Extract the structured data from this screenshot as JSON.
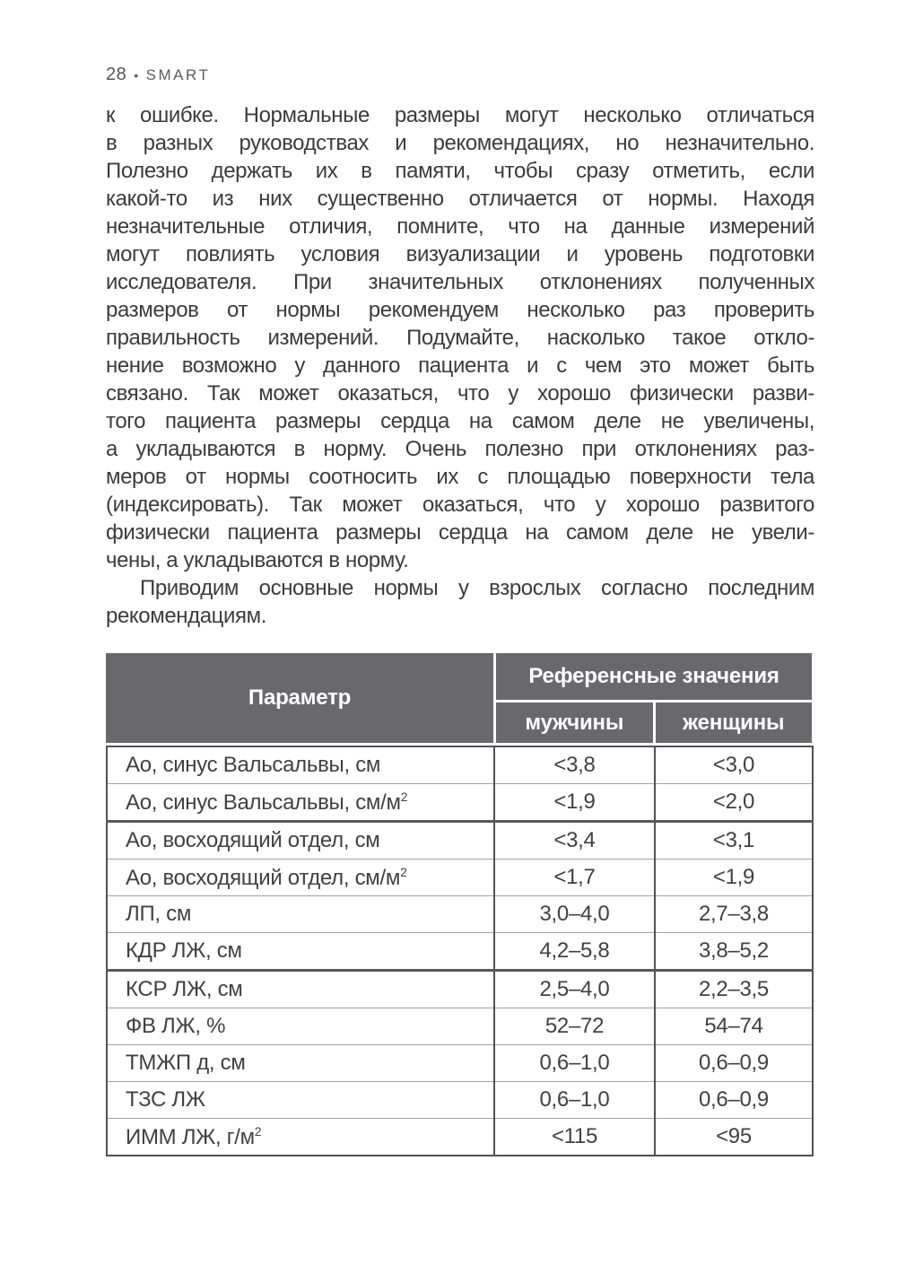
{
  "page_header": {
    "page_number": "28",
    "separator": "•",
    "book_title": "SMART"
  },
  "body": {
    "paragraphs": [
      {
        "indent": false,
        "lines": [
          "к ошибке. Нормальные размеры могут несколько отличаться",
          "в разных руководствах и рекомендациях, но незначительно.",
          "Полезно держать их в памяти, чтобы сразу отметить, если",
          "какой-то из них существенно отличается от нормы. Находя",
          "незначительные отличия, помните, что на данные измерений",
          "могут повлиять условия визуализации и уровень подготовки",
          "исследователя. При значительных отклонениях полученных",
          "размеров от нормы рекомендуем несколько раз проверить",
          "правильность измерений. Подумайте, насколько такое откло-",
          "нение возможно у данного пациента и с чем это может быть",
          "связано. Так может оказаться, что у хорошо физически разви-",
          "того пациента размеры сердца на самом деле не увеличены,",
          "а укладываются в норму. Очень полезно при отклонениях раз-",
          "меров от нормы соотносить их с площадью поверхности тела",
          "(индексировать). Так может оказаться, что у хорошо развитого",
          "физически пациента размеры сердца на самом деле не увели-",
          "чены, а укладываются в норму."
        ]
      },
      {
        "indent": true,
        "lines": [
          "Приводим основные нормы у взрослых согласно последним",
          "рекомендациям."
        ]
      }
    ]
  },
  "table": {
    "header": {
      "parameter": "Параметр",
      "reference": "Референсные значения",
      "men": "мужчины",
      "women": "женщины"
    },
    "rows": [
      {
        "parameter": "Ао, синус Вальсальвы, см",
        "men": "<3,8",
        "women": "<3,0"
      },
      {
        "parameter": "Ао, синус Вальсальвы, см/м²",
        "men": "<1,9",
        "women": "<2,0"
      },
      {
        "parameter": "Ао, восходящий отдел, см",
        "men": "<3,4",
        "women": "<3,1"
      },
      {
        "parameter": "Ао, восходящий отдел, см/м²",
        "men": "<1,7",
        "women": "<1,9"
      },
      {
        "parameter": "ЛП, см",
        "men": "3,0–4,0",
        "women": "2,7–3,8"
      },
      {
        "parameter": "КДР ЛЖ, см",
        "men": "4,2–5,8",
        "women": "3,8–5,2"
      },
      {
        "parameter": "КСР ЛЖ, см",
        "men": "2,5–4,0",
        "women": "2,2–3,5"
      },
      {
        "parameter": "ФВ ЛЖ, %",
        "men": "52–72",
        "women": "54–74"
      },
      {
        "parameter": "ТМЖП д, см",
        "men": "0,6–1,0",
        "women": "0,6–0,9"
      },
      {
        "parameter": "ТЗС ЛЖ",
        "men": "0,6–1,0",
        "women": "0,6–0,9"
      },
      {
        "parameter": "ИММ ЛЖ, г/м²",
        "men": "<115",
        "women": "<95"
      }
    ]
  }
}
